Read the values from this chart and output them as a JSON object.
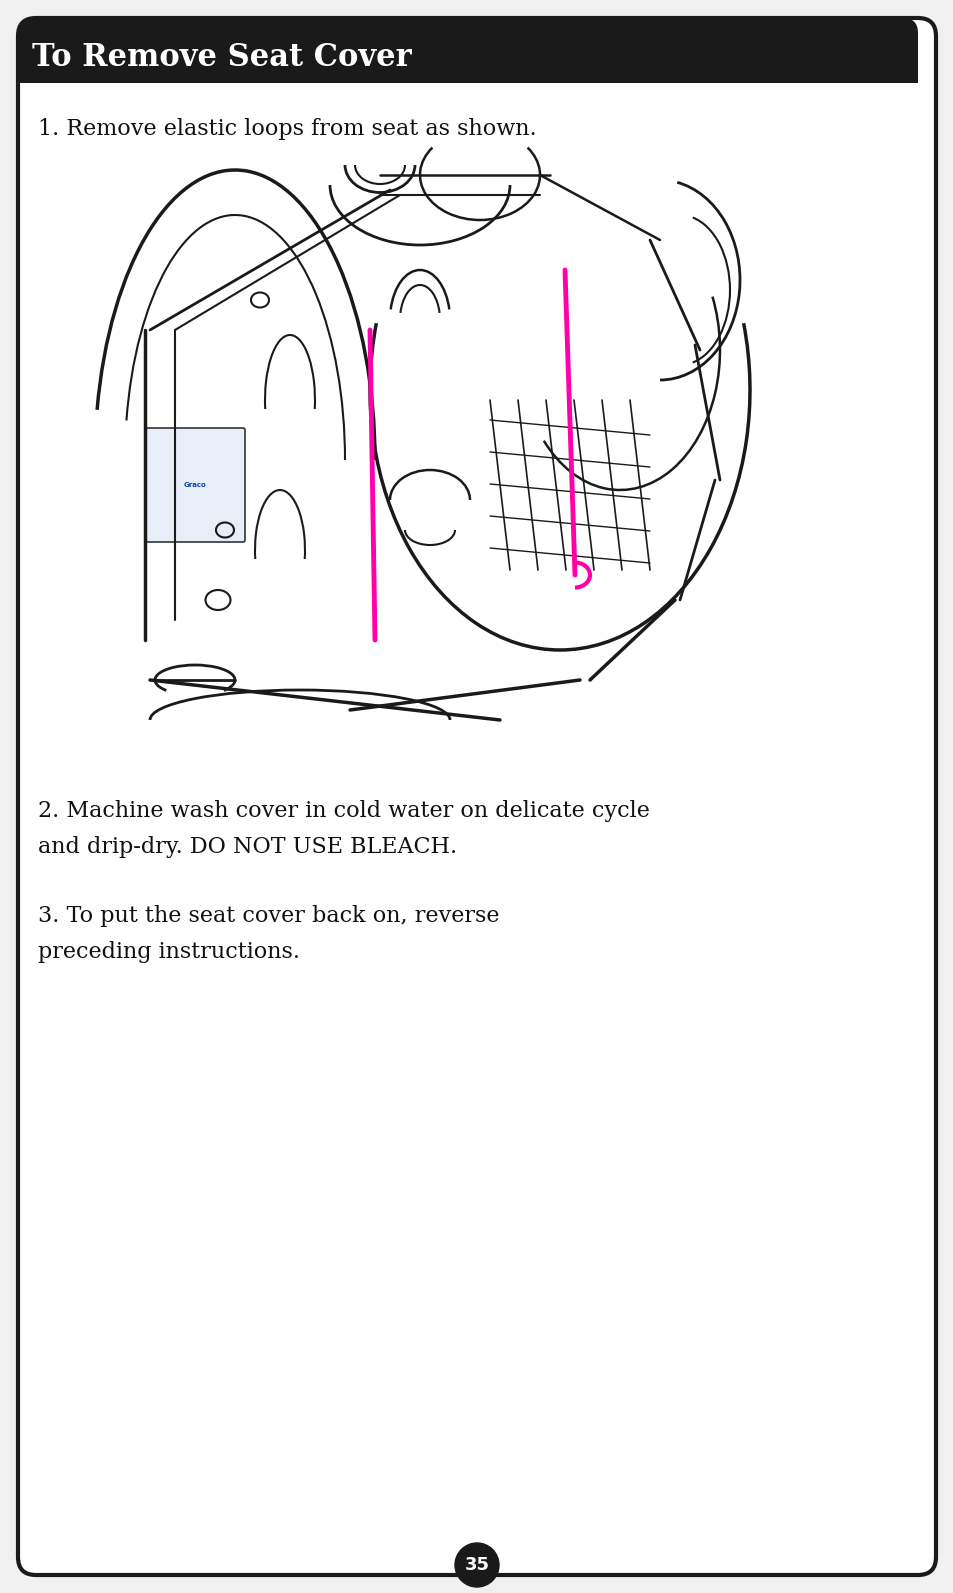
{
  "title": "To Remove Seat Cover",
  "title_bg": "#1a1a1a",
  "title_color": "#ffffff",
  "title_fontsize": 22,
  "page_bg": "#ffffff",
  "border_color": "#1a1a1a",
  "step1": "1. Remove elastic loops from seat as shown.",
  "step2": "2. Machine wash cover in cold water on delicate cycle\nand drip-dry. DO NOT USE BLEACH.",
  "step3": "3. To put the seat cover back on, reverse\npreceding instructions.",
  "page_number": "35",
  "text_fontsize": 16,
  "magenta_color": "#ff00aa",
  "step1_fontsize": 16,
  "steps_fontsize": 16
}
